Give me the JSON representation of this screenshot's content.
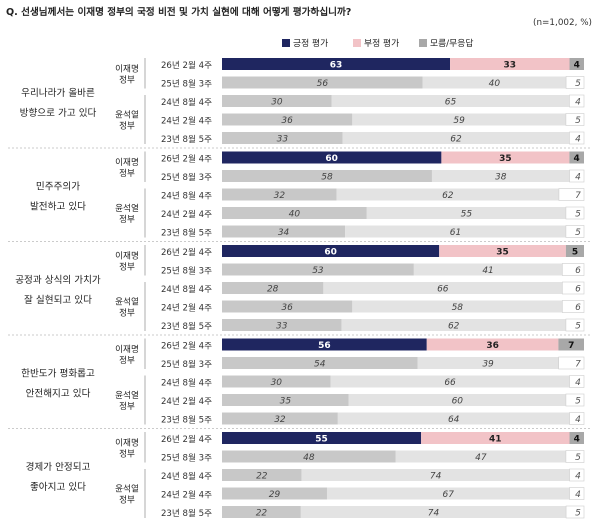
{
  "question": "Q. 선생님께서는 이재명 정부의 국정 비전 및 가치 실현에 대해 어떻게 평가하십니까?",
  "note": "(n=1,002, %)",
  "legend": [
    {
      "key": "positive",
      "label": "긍정 평가",
      "color": "#1f2660"
    },
    {
      "key": "negative",
      "label": "부정 평가",
      "color": "#f2c3c7"
    },
    {
      "key": "dontknow",
      "label": "모름/무응답",
      "color": "#a8a8a8"
    }
  ],
  "colors": {
    "positive_current": "#1f2660",
    "negative_current": "#f2c3c7",
    "dontknow_current": "#a8a8a8",
    "past_positive": "#c8c8c8",
    "past_negative": "#e3e3e3",
    "past_dontknow": "#ffffff"
  },
  "groups": [
    {
      "lee": "이재명 정부",
      "yoon": "윤석열 정부"
    }
  ],
  "chart_data": {
    "type": "bar",
    "stacked": true,
    "orientation": "horizontal",
    "series_names": [
      "긍정 평가",
      "부정 평가",
      "모름/무응답"
    ],
    "questions": [
      {
        "label_lines": [
          "우리나라가 올바른",
          "방향으로 가고 있다"
        ],
        "rows": [
          {
            "date": "26년 2월 4주",
            "gov": "이재명 정부",
            "values": [
              63,
              33,
              4
            ]
          },
          {
            "date": "25년 8월 3주",
            "gov": "이재명 정부",
            "values": [
              56,
              40,
              5
            ]
          },
          {
            "date": "24년 8월 4주",
            "gov": "윤석열 정부",
            "values": [
              30,
              65,
              4
            ]
          },
          {
            "date": "24년 2월 4주",
            "gov": "윤석열 정부",
            "values": [
              36,
              59,
              5
            ]
          },
          {
            "date": "23년 8월 5주",
            "gov": "윤석열 정부",
            "values": [
              33,
              62,
              4
            ]
          }
        ]
      },
      {
        "label_lines": [
          "민주주의가",
          "발전하고 있다"
        ],
        "rows": [
          {
            "date": "26년 2월 4주",
            "gov": "이재명 정부",
            "values": [
              60,
              35,
              4
            ]
          },
          {
            "date": "25년 8월 3주",
            "gov": "이재명 정부",
            "values": [
              58,
              38,
              4
            ]
          },
          {
            "date": "24년 8월 4주",
            "gov": "윤석열 정부",
            "values": [
              32,
              62,
              7
            ]
          },
          {
            "date": "24년 2월 4주",
            "gov": "윤석열 정부",
            "values": [
              40,
              55,
              5
            ]
          },
          {
            "date": "23년 8월 5주",
            "gov": "윤석열 정부",
            "values": [
              34,
              61,
              5
            ]
          }
        ]
      },
      {
        "label_lines": [
          "공정과 상식의 가치가",
          "잘 실현되고 있다"
        ],
        "rows": [
          {
            "date": "26년 2월 4주",
            "gov": "이재명 정부",
            "values": [
              60,
              35,
              5
            ]
          },
          {
            "date": "25년 8월 3주",
            "gov": "이재명 정부",
            "values": [
              53,
              41,
              6
            ]
          },
          {
            "date": "24년 8월 4주",
            "gov": "윤석열 정부",
            "values": [
              28,
              66,
              6
            ]
          },
          {
            "date": "24년 2월 4주",
            "gov": "윤석열 정부",
            "values": [
              36,
              58,
              6
            ]
          },
          {
            "date": "23년 8월 5주",
            "gov": "윤석열 정부",
            "values": [
              33,
              62,
              5
            ]
          }
        ]
      },
      {
        "label_lines": [
          "한반도가 평화롭고",
          "안전해지고 있다"
        ],
        "rows": [
          {
            "date": "26년 2월 4주",
            "gov": "이재명 정부",
            "values": [
              56,
              36,
              7
            ]
          },
          {
            "date": "25년 8월 3주",
            "gov": "이재명 정부",
            "values": [
              54,
              39,
              7
            ]
          },
          {
            "date": "24년 8월 4주",
            "gov": "윤석열 정부",
            "values": [
              30,
              66,
              4
            ]
          },
          {
            "date": "24년 2월 4주",
            "gov": "윤석열 정부",
            "values": [
              35,
              60,
              5
            ]
          },
          {
            "date": "23년 8월 5주",
            "gov": "윤석열 정부",
            "values": [
              32,
              64,
              4
            ]
          }
        ]
      },
      {
        "label_lines": [
          "경제가 안정되고",
          "좋아지고 있다"
        ],
        "rows": [
          {
            "date": "26년 2월 4주",
            "gov": "이재명 정부",
            "values": [
              55,
              41,
              4
            ]
          },
          {
            "date": "25년 8월 3주",
            "gov": "이재명 정부",
            "values": [
              48,
              47,
              5
            ]
          },
          {
            "date": "24년 8월 4주",
            "gov": "윤석열 정부",
            "values": [
              22,
              74,
              4
            ]
          },
          {
            "date": "24년 2월 4주",
            "gov": "윤석열 정부",
            "values": [
              29,
              67,
              4
            ]
          },
          {
            "date": "23년 8월 5주",
            "gov": "윤석열 정부",
            "values": [
              22,
              74,
              5
            ]
          }
        ]
      }
    ]
  }
}
